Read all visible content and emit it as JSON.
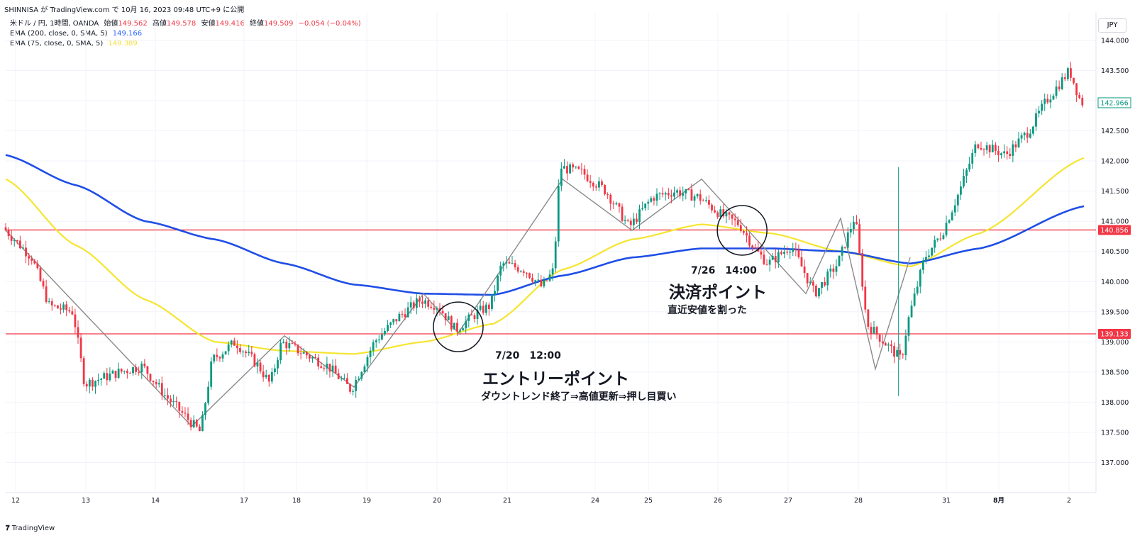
{
  "header": {
    "publish_line": "SHINNISA が TradingView.com で 10月 16, 2023 09:48 UTC+9 に公開",
    "symbol": "米ドル / 円, 1時間, OANDA",
    "open_label": "始値",
    "open": "149.562",
    "high_label": "高値",
    "high": "149.578",
    "low_label": "安値",
    "low": "149.416",
    "close_label": "終値",
    "close": "149.509",
    "change": "−0.054 (−0.04%)",
    "ema200_label": "EMA (200, close, 0, SMA, 5)",
    "ema200_value": "149.166",
    "ema75_label": "EMA (75, close, 0, SMA, 5)",
    "ema75_value": "149.389"
  },
  "currency": "JPY",
  "brand": "TradingView",
  "colors": {
    "up": "#089981",
    "down": "#f23645",
    "ema200": "#1f4ee6",
    "ema75": "#f5e52f",
    "hline": "#f23645",
    "zigzag": "#8a8a8a",
    "last_price": "#089981"
  },
  "chart_data": {
    "type": "candlestick",
    "symbol": "USDJPY 1H",
    "y_range": [
      136.5,
      144.2
    ],
    "y_ticks": [
      "144.000",
      "143.500",
      "143.000",
      "142.500",
      "142.000",
      "141.500",
      "141.000",
      "140.500",
      "140.000",
      "139.500",
      "139.000",
      "138.500",
      "138.000",
      "137.500",
      "137.000"
    ],
    "x_ticks": [
      {
        "label": "12",
        "date": "2023-07-12"
      },
      {
        "label": "13",
        "date": "2023-07-13"
      },
      {
        "label": "14",
        "date": "2023-07-14"
      },
      {
        "label": "17",
        "date": "2023-07-17"
      },
      {
        "label": "18",
        "date": "2023-07-18"
      },
      {
        "label": "19",
        "date": "2023-07-19"
      },
      {
        "label": "20",
        "date": "2023-07-20"
      },
      {
        "label": "21",
        "date": "2023-07-21"
      },
      {
        "label": "24",
        "date": "2023-07-24"
      },
      {
        "label": "25",
        "date": "2023-07-25"
      },
      {
        "label": "26",
        "date": "2023-07-26"
      },
      {
        "label": "27",
        "date": "2023-07-27"
      },
      {
        "label": "28",
        "date": "2023-07-28"
      },
      {
        "label": "31",
        "date": "2023-07-31"
      },
      {
        "label": "8月",
        "date": "2023-08-01"
      },
      {
        "label": "2",
        "date": "2023-08-02"
      }
    ],
    "price_path": [
      [
        "07-12 00:00",
        140.9
      ],
      [
        "07-12 10:00",
        140.4
      ],
      [
        "07-12 16:00",
        139.6
      ],
      [
        "07-13 00:00",
        139.5
      ],
      [
        "07-13 04:00",
        138.3
      ],
      [
        "07-13 16:00",
        138.5
      ],
      [
        "07-14 00:00",
        138.6
      ],
      [
        "07-14 08:00",
        138.1
      ],
      [
        "07-14 16:00",
        137.7
      ],
      [
        "07-14 20:00",
        137.5
      ],
      [
        "07-17 00:00",
        138.7
      ],
      [
        "07-17 08:00",
        139.0
      ],
      [
        "07-17 16:00",
        138.6
      ],
      [
        "07-17 20:00",
        138.3
      ],
      [
        "07-18 00:00",
        139.0
      ],
      [
        "07-18 08:00",
        138.8
      ],
      [
        "07-18 16:00",
        138.6
      ],
      [
        "07-19 00:00",
        138.2
      ],
      [
        "07-19 08:00",
        139.0
      ],
      [
        "07-19 16:00",
        139.4
      ],
      [
        "07-20 00:00",
        139.7
      ],
      [
        "07-20 06:00",
        139.6
      ],
      [
        "07-20 12:00",
        139.2
      ],
      [
        "07-20 20:00",
        139.5
      ],
      [
        "07-21 00:00",
        139.6
      ],
      [
        "07-21 04:00",
        140.3
      ],
      [
        "07-21 12:00",
        140.2
      ],
      [
        "07-21 18:00",
        139.9
      ],
      [
        "07-21 22:00",
        140.2
      ],
      [
        "07-24 00:00",
        141.9
      ],
      [
        "07-24 08:00",
        141.8
      ],
      [
        "07-24 16:00",
        141.5
      ],
      [
        "07-25 00:00",
        140.9
      ],
      [
        "07-25 08:00",
        141.4
      ],
      [
        "07-25 16:00",
        141.5
      ],
      [
        "07-26 00:00",
        141.4
      ],
      [
        "07-26 08:00",
        141.1
      ],
      [
        "07-26 14:00",
        140.95
      ],
      [
        "07-26 20:00",
        140.5
      ],
      [
        "07-27 00:00",
        140.3
      ],
      [
        "07-27 08:00",
        140.6
      ],
      [
        "07-27 16:00",
        139.8
      ],
      [
        "07-28 00:00",
        140.3
      ],
      [
        "07-28 06:00",
        141.1
      ],
      [
        "07-28 10:00",
        139.3
      ],
      [
        "07-28 16:00",
        139.0
      ],
      [
        "07-28 22:00",
        138.7
      ],
      [
        "07-31 00:00",
        139.3
      ],
      [
        "07-31 06:00",
        140.4
      ],
      [
        "07-31 12:00",
        140.8
      ],
      [
        "07-31 18:00",
        141.5
      ],
      [
        "08-01 00:00",
        142.3
      ],
      [
        "08-01 10:00",
        142.1
      ],
      [
        "08-01 18:00",
        142.5
      ],
      [
        "08-02 00:00",
        143.0
      ],
      [
        "08-02 08:00",
        143.5
      ],
      [
        "08-02 12:00",
        142.97
      ]
    ],
    "ema200": [
      [
        "07-12 00:00",
        142.1
      ],
      [
        "07-13 00:00",
        141.6
      ],
      [
        "07-14 00:00",
        141.0
      ],
      [
        "07-17 00:00",
        140.7
      ],
      [
        "07-18 00:00",
        140.3
      ],
      [
        "07-19 00:00",
        139.95
      ],
      [
        "07-20 00:00",
        139.8
      ],
      [
        "07-21 00:00",
        139.78
      ],
      [
        "07-24 00:00",
        140.1
      ],
      [
        "07-25 00:00",
        140.4
      ],
      [
        "07-26 00:00",
        140.55
      ],
      [
        "07-27 00:00",
        140.55
      ],
      [
        "07-28 00:00",
        140.5
      ],
      [
        "07-31 00:00",
        140.3
      ],
      [
        "08-01 00:00",
        140.55
      ],
      [
        "08-02 12:00",
        141.25
      ]
    ],
    "ema75": [
      [
        "07-12 00:00",
        141.7
      ],
      [
        "07-13 00:00",
        140.6
      ],
      [
        "07-14 00:00",
        139.7
      ],
      [
        "07-17 00:00",
        139.0
      ],
      [
        "07-18 00:00",
        138.85
      ],
      [
        "07-19 00:00",
        138.8
      ],
      [
        "07-20 00:00",
        139.0
      ],
      [
        "07-21 00:00",
        139.3
      ],
      [
        "07-24 00:00",
        140.2
      ],
      [
        "07-25 00:00",
        140.7
      ],
      [
        "07-26 00:00",
        140.95
      ],
      [
        "07-27 00:00",
        140.8
      ],
      [
        "07-28 00:00",
        140.5
      ],
      [
        "07-31 00:00",
        140.25
      ],
      [
        "08-01 00:00",
        140.8
      ],
      [
        "08-02 12:00",
        142.05
      ]
    ],
    "zigzag": [
      [
        "07-12 00:00",
        140.85
      ],
      [
        "07-14 16:00",
        137.6
      ],
      [
        "07-18 00:00",
        139.1
      ],
      [
        "07-19 00:00",
        138.25
      ],
      [
        "07-20 00:00",
        139.8
      ],
      [
        "07-20 12:00",
        139.15
      ],
      [
        "07-24 00:00",
        141.7
      ],
      [
        "07-25 00:00",
        140.85
      ],
      [
        "07-26 00:00",
        141.7
      ],
      [
        "07-27 12:00",
        139.8
      ],
      [
        "07-28 00:00",
        141.05
      ],
      [
        "07-28 12:00",
        138.55
      ],
      [
        "07-31 00:00",
        140.4
      ]
    ],
    "horizontal_lines": [
      {
        "price": 140.856,
        "label": "140.856"
      },
      {
        "price": 139.133,
        "label": "139.133"
      }
    ],
    "last_price": {
      "price": 142.966,
      "label": "142.966"
    },
    "annotations": [
      {
        "time": "07-20 12:00",
        "price": 139.25,
        "time_label": "7/20　12:00",
        "title": "エントリーポイント",
        "subtitle": "ダウントレンド終了⇒高値更新⇒押し目買い"
      },
      {
        "time": "07-26 14:00",
        "price": 140.85,
        "time_label": "7/26　14:00",
        "title": "決済ポイント",
        "subtitle": "直近安値を割った"
      }
    ]
  }
}
